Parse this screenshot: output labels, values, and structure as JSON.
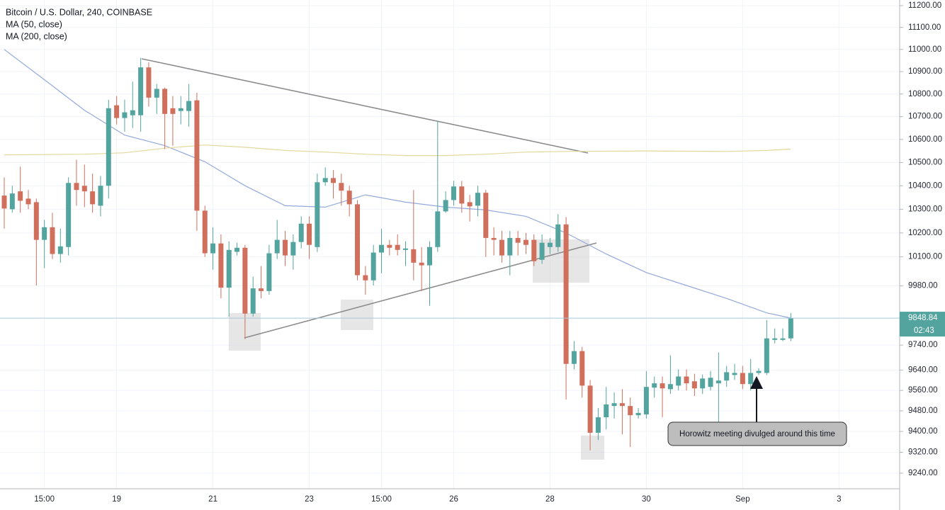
{
  "chart_data": {
    "type": "candlestick",
    "title": "Bitcoin / U.S. Dollar, 240, COINBASE",
    "log_scale": true,
    "grid": true,
    "up_color": "#53a49e",
    "down_color": "#d06f5c",
    "categories": [
      null,
      null,
      null,
      null,
      null,
      "15:00",
      null,
      null,
      null,
      null,
      null,
      null,
      null,
      null,
      "19",
      null,
      null,
      null,
      null,
      null,
      null,
      null,
      null,
      null,
      null,
      null,
      "21",
      null,
      null,
      null,
      null,
      null,
      null,
      null,
      null,
      null,
      null,
      null,
      "23",
      null,
      null,
      null,
      null,
      null,
      null,
      null,
      null,
      "15:00",
      null,
      null,
      null,
      null,
      null,
      null,
      null,
      null,
      "26",
      null,
      null,
      null,
      null,
      null,
      null,
      null,
      null,
      null,
      null,
      null,
      "28",
      null,
      null,
      null,
      null,
      null,
      null,
      null,
      null,
      null,
      null,
      null,
      "30",
      null,
      null,
      null,
      null,
      null,
      null,
      null,
      null,
      null,
      null,
      null,
      "Sep",
      null,
      null,
      null,
      null,
      null,
      null,
      null,
      null,
      null,
      null,
      null,
      "3"
    ],
    "open": [
      10358,
      10300,
      10376,
      10345,
      10330,
      10171,
      10224,
      10112,
      10141,
      10412,
      10400,
      10376,
      10315,
      10400,
      10750,
      10694,
      10706,
      10706,
      10919,
      10784,
      10823,
      10737,
      10725,
      10725,
      10772,
      10294,
      10115,
      10156,
      9973,
      10121,
      10138,
      9867,
      9970,
      9959,
      10115,
      10171,
      10106,
      10162,
      10239,
      10141,
      10415,
      10433,
      10412,
      10379,
      10321,
      10024,
      10003,
      10118,
      10150,
      10150,
      10129,
      10132,
      10076,
      10065,
      10141,
      10291,
      10339,
      10397,
      10330,
      10315,
      10370,
      10179,
      10171,
      10106,
      10179,
      10171,
      10171,
      10088,
      10141,
      10141,
      10236,
      9665,
      9716,
      9579,
      9395,
      9455,
      9499,
      9510,
      9499,
      9463,
      9466,
      9571,
      9588,
      9565,
      9579,
      9615,
      9596,
      9568,
      9574,
      9588,
      9599,
      9621,
      9629,
      9585,
      9629,
      9629,
      9761,
      9761,
      9767,
      null,
      null,
      null,
      null,
      null,
      null
    ],
    "high": [
      10436,
      10400,
      10482,
      10382,
      10345,
      10255,
      10285,
      10218,
      10436,
      10512,
      10491,
      10452,
      10442,
      10775,
      10791,
      10775,
      10855,
      10961,
      10942,
      10845,
      10829,
      10791,
      10791,
      10845,
      10806,
      10315,
      10224,
      10194,
      10165,
      10159,
      10150,
      10018,
      10062,
      10150,
      10255,
      10209,
      10194,
      10270,
      10270,
      10452,
      10479,
      10467,
      10452,
      10400,
      10339,
      10062,
      10150,
      10218,
      10171,
      10194,
      10165,
      10382,
      10141,
      10165,
      10681,
      10376,
      10421,
      10421,
      10361,
      10400,
      10382,
      10224,
      10209,
      10209,
      10209,
      10200,
      10194,
      10194,
      10179,
      10279,
      10267,
      9756,
      9733,
      9601,
      9491,
      9574,
      9552,
      9565,
      9532,
      9491,
      9637,
      9615,
      9615,
      9699,
      9643,
      9643,
      9626,
      9623,
      9637,
      9710,
      9657,
      9665,
      9657,
      9685,
      9648,
      9841,
      9807,
      9807,
      9869,
      null,
      null,
      null,
      null,
      null,
      null
    ],
    "low": [
      10218,
      10285,
      10285,
      10300,
      9982,
      10053,
      10091,
      10076,
      10106,
      10315,
      10309,
      10285,
      10270,
      10345,
      10666,
      10634,
      10650,
      10634,
      10744,
      10712,
      10558,
      10573,
      10666,
      10656,
      10209,
      10100,
      10047,
      9929,
      9855,
      10106,
      9764,
      9855,
      9929,
      9944,
      10091,
      10062,
      10047,
      10135,
      10091,
      10121,
      10400,
      10345,
      10315,
      10270,
      10003,
      9944,
      9982,
      10032,
      10106,
      10106,
      10062,
      10003,
      9959,
      9899,
      10121,
      10285,
      10315,
      10285,
      10248,
      10270,
      10100,
      10106,
      10076,
      10024,
      10106,
      10112,
      10062,
      10071,
      10112,
      10121,
      9524,
      9643,
      9532,
      9327,
      9367,
      9408,
      9450,
      9389,
      9340,
      9450,
      9450,
      9532,
      9455,
      9546,
      9560,
      9560,
      9538,
      9546,
      9560,
      9436,
      9574,
      9601,
      9565,
      9560,
      9621,
      9621,
      9747,
      9756,
      9756,
      null,
      null,
      null,
      null,
      null,
      null
    ],
    "close": [
      10303,
      10367,
      10336,
      10321,
      10171,
      10224,
      10112,
      10144,
      10412,
      10382,
      10376,
      10321,
      10400,
      10737,
      10694,
      10719,
      10728,
      10919,
      10784,
      10823,
      10712,
      10712,
      10737,
      10769,
      10294,
      10115,
      10156,
      9973,
      10129,
      10138,
      9867,
      9970,
      9959,
      10115,
      10171,
      10106,
      10162,
      10239,
      10150,
      10415,
      10433,
      10412,
      10379,
      10321,
      10024,
      10003,
      10118,
      10150,
      10138,
      10129,
      10135,
      10076,
      10065,
      10141,
      10291,
      10339,
      10397,
      10324,
      10312,
      10370,
      10179,
      10171,
      10106,
      10179,
      10159,
      10150,
      10082,
      10159,
      10159,
      10236,
      9665,
      9716,
      9579,
      9395,
      9455,
      9505,
      9510,
      9499,
      9463,
      9472,
      9574,
      9588,
      9568,
      9585,
      9615,
      9588,
      9568,
      9607,
      9610,
      9599,
      9632,
      9629,
      9585,
      9629,
      9637,
      9767,
      9767,
      9767,
      9848.84,
      null,
      null,
      null,
      null,
      null,
      null
    ],
    "series": [
      {
        "name": "MA (50, close)",
        "color": "#93a9dc",
        "x": [
          0,
          5,
          10,
          15,
          20,
          25,
          30,
          35,
          40,
          45,
          50,
          55,
          60,
          65,
          70,
          75,
          80,
          85,
          90,
          95,
          98
        ],
        "values": [
          11000,
          10864,
          10728,
          10619,
          10573,
          10503,
          10400,
          10315,
          10309,
          10361,
          10330,
          10309,
          10297,
          10270,
          10200,
          10112,
          10035,
          9982,
          9929,
          9870,
          9849
        ]
      },
      {
        "name": "MA (200, close)",
        "color": "#e2d89c",
        "x": [
          0,
          10,
          15,
          20,
          25,
          30,
          35,
          40,
          45,
          50,
          55,
          60,
          65,
          70,
          80,
          90,
          95,
          98
        ],
        "values": [
          10533,
          10536,
          10542,
          10562,
          10576,
          10566,
          10552,
          10545,
          10536,
          10530,
          10530,
          10536,
          10545,
          10548,
          10550,
          10548,
          10552,
          10558
        ]
      }
    ],
    "ylim": [
      9181,
      11226
    ],
    "yticks": [
      {
        "value": 11200,
        "label": "11200.00"
      },
      {
        "value": 11100,
        "label": "11100.00"
      },
      {
        "value": 11000,
        "label": "11000.00"
      },
      {
        "value": 10900,
        "label": "10900.00"
      },
      {
        "value": 10800,
        "label": "10800.00"
      },
      {
        "value": 10700,
        "label": "10700.00"
      },
      {
        "value": 10600,
        "label": "10600.00"
      },
      {
        "value": 10500,
        "label": "10500.00"
      },
      {
        "value": 10400,
        "label": "10400.00"
      },
      {
        "value": 10300,
        "label": "10300.00"
      },
      {
        "value": 10200,
        "label": "10200.00"
      },
      {
        "value": 10100,
        "label": "10100.00"
      },
      {
        "value": 9980,
        "label": "9980.00"
      },
      {
        "value": 9740,
        "label": "9740.00"
      },
      {
        "value": 9640,
        "label": "9640.00"
      },
      {
        "value": 9560,
        "label": "9560.00"
      },
      {
        "value": 9480,
        "label": "9480.00"
      },
      {
        "value": 9400,
        "label": "9400.00"
      },
      {
        "value": 9320,
        "label": "9320.00"
      },
      {
        "value": 9240,
        "label": "9240.00"
      }
    ],
    "countdown": "02:43",
    "annotation": "Horowitz meeting divulged around this time"
  }
}
